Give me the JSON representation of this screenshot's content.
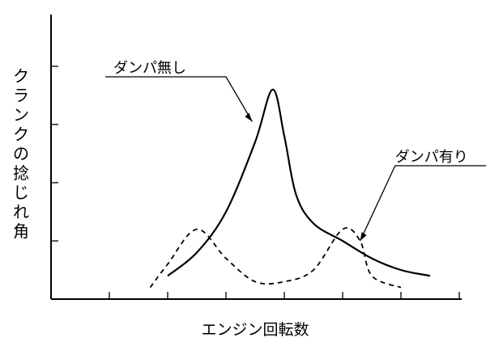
{
  "chart_data": {
    "type": "line",
    "title": "",
    "xlabel": "エンジン回転数",
    "ylabel": "クランクの捻じれ角",
    "x_ticks": 7,
    "y_ticks": 4,
    "grid": false,
    "series": [
      {
        "name": "ダンパ無し",
        "style": "solid",
        "x": [
          2.0,
          2.5,
          3.0,
          3.5,
          3.8,
          4.0,
          4.2,
          4.5,
          5.0,
          5.5,
          6.0,
          6.5
        ],
        "y": [
          0.4,
          0.8,
          1.5,
          2.7,
          3.6,
          2.8,
          1.8,
          1.3,
          1.0,
          0.7,
          0.5,
          0.4
        ]
      },
      {
        "name": "ダンパ有り",
        "style": "dashed",
        "x": [
          1.7,
          2.0,
          2.5,
          3.0,
          3.5,
          4.0,
          4.5,
          5.0,
          5.3,
          5.5,
          6.0
        ],
        "y": [
          0.2,
          0.6,
          1.2,
          0.7,
          0.3,
          0.3,
          0.5,
          1.2,
          1.0,
          0.4,
          0.2
        ]
      }
    ]
  },
  "annotations": {
    "no_damper": "ダンパ無し",
    "with_damper": "ダンパ有り"
  }
}
